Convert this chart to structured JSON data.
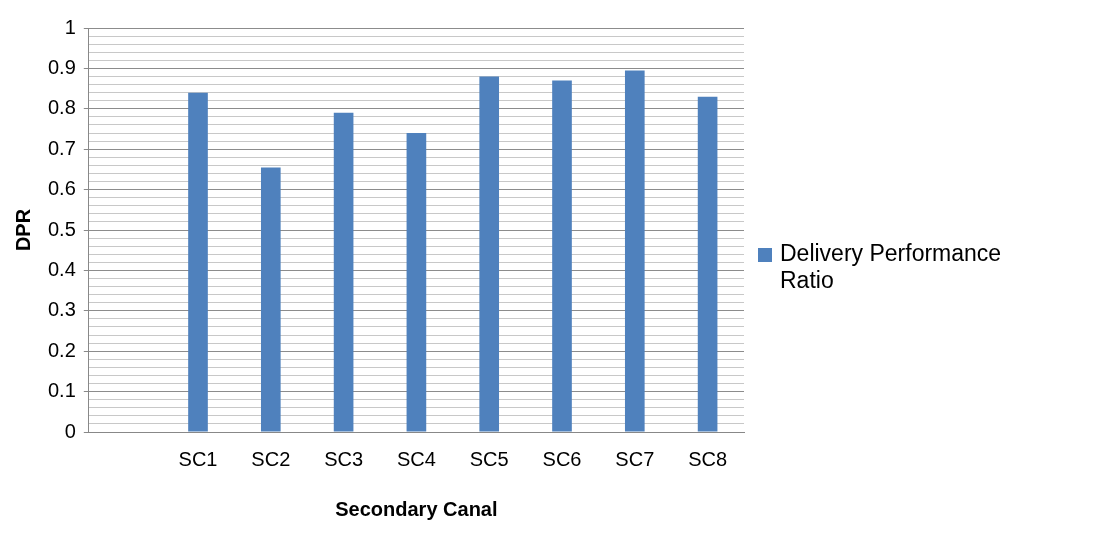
{
  "chart_data": {
    "type": "bar",
    "categories": [
      null,
      "SC1",
      "SC2",
      "SC3",
      "SC4",
      "SC5",
      "SC6",
      "SC7",
      "SC8"
    ],
    "series": [
      {
        "name": "Delivery Performance Ratio",
        "color": "#4f81bd",
        "values": [
          null,
          0.84,
          0.655,
          0.79,
          0.74,
          0.88,
          0.87,
          0.895,
          0.83
        ]
      }
    ],
    "xlabel": "Secondary Canal",
    "ylabel": "DPR",
    "ylim": [
      0,
      1
    ],
    "yticks": [
      0,
      {
        "value": 0.02,
        "label": null
      },
      {
        "value": 0.04,
        "label": null
      },
      {
        "value": 0.06,
        "label": null
      },
      {
        "value": 0.08,
        "label": null
      },
      0.1,
      {
        "value": 0.12,
        "label": null
      },
      {
        "value": 0.14,
        "label": null
      },
      {
        "value": 0.16,
        "label": null
      },
      {
        "value": 0.18,
        "label": null
      },
      0.2,
      {
        "value": 0.22,
        "label": null
      },
      {
        "value": 0.24,
        "label": null
      },
      {
        "value": 0.26,
        "label": null
      },
      {
        "value": 0.28,
        "label": null
      },
      0.3,
      {
        "value": 0.32,
        "label": null
      },
      {
        "value": 0.34,
        "label": null
      },
      {
        "value": 0.36,
        "label": null
      },
      {
        "value": 0.38,
        "label": null
      },
      0.4,
      {
        "value": 0.42,
        "label": null
      },
      {
        "value": 0.44,
        "label": null
      },
      {
        "value": 0.46,
        "label": null
      },
      {
        "value": 0.48,
        "label": null
      },
      0.5,
      {
        "value": 0.52,
        "label": null
      },
      {
        "value": 0.54,
        "label": null
      },
      {
        "value": 0.56,
        "label": null
      },
      {
        "value": 0.58,
        "label": null
      },
      0.6,
      {
        "value": 0.62,
        "label": null
      },
      {
        "value": 0.64,
        "label": null
      },
      {
        "value": 0.66,
        "label": null
      },
      {
        "value": 0.68,
        "label": null
      },
      0.7,
      {
        "value": 0.72,
        "label": null
      },
      {
        "value": 0.74,
        "label": null
      },
      {
        "value": 0.76,
        "label": null
      },
      {
        "value": 0.78,
        "label": null
      },
      0.8,
      {
        "value": 0.82,
        "label": null
      },
      {
        "value": 0.84,
        "label": null
      },
      {
        "value": 0.86,
        "label": null
      },
      {
        "value": 0.88,
        "label": null
      },
      0.9,
      {
        "value": 0.92,
        "label": null
      },
      {
        "value": 0.94,
        "label": null
      },
      {
        "value": 0.96,
        "label": null
      },
      {
        "value": 0.98,
        "label": null
      },
      1
    ],
    "grid": "y",
    "legend": "right"
  }
}
